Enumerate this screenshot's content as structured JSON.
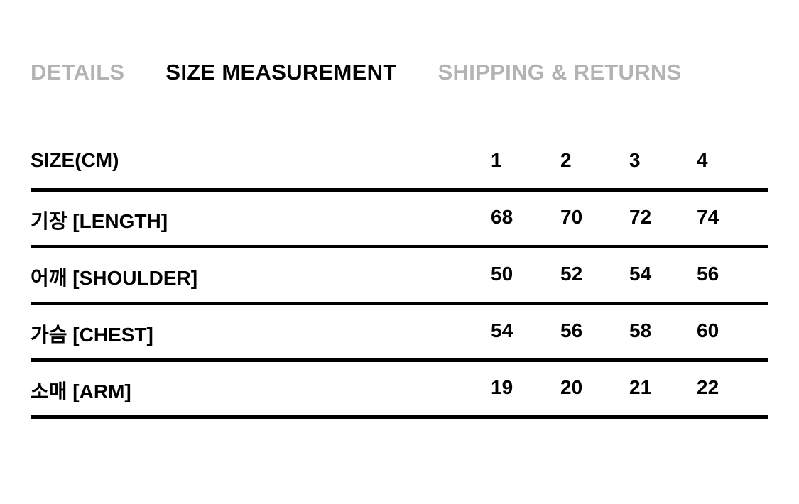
{
  "tabs": [
    {
      "label": "DETAILS",
      "active": false
    },
    {
      "label": "SIZE MEASUREMENT",
      "active": true
    },
    {
      "label": "SHIPPING & RETURNS",
      "active": false
    }
  ],
  "table": {
    "header": {
      "label": "SIZE(CM)",
      "sizes": [
        "1",
        "2",
        "3",
        "4"
      ]
    },
    "rows": [
      {
        "label": "기장 [LENGTH]",
        "values": [
          "68",
          "70",
          "72",
          "74"
        ]
      },
      {
        "label": "어깨 [SHOULDER]",
        "values": [
          "50",
          "52",
          "54",
          "56"
        ]
      },
      {
        "label": "가슴 [CHEST]",
        "values": [
          "54",
          "56",
          "58",
          "60"
        ]
      },
      {
        "label": "소매 [ARM]",
        "values": [
          "19",
          "20",
          "21",
          "22"
        ]
      }
    ]
  }
}
